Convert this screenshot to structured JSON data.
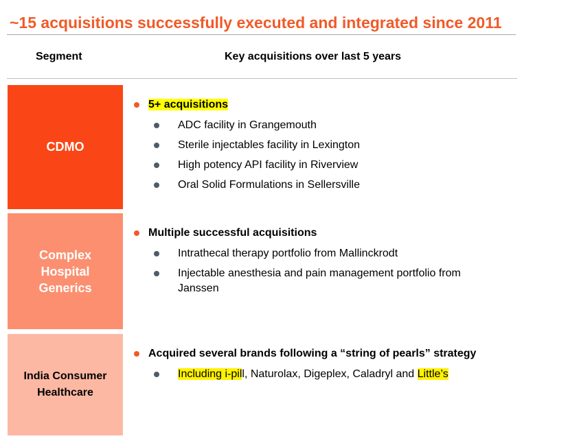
{
  "title": "~15 acquisitions successfully executed and integrated since 2011",
  "headers": {
    "segment": "Segment",
    "acquisitions": "Key acquisitions over last 5 years"
  },
  "colors": {
    "accent": "#f05a28",
    "cdmo": "#fa4616",
    "complex_hospital_generics": "#fc8f70",
    "india_consumer_healthcare": "#fdb8a4",
    "highlight": "#ffff00",
    "sub_bullet": "#4e5b6a"
  },
  "segments": [
    {
      "name_lines": [
        "CDMO"
      ],
      "headline": "5+ acquisitions",
      "items": [
        "ADC facility in Grangemouth",
        "Sterile injectables facility in Lexington",
        "High potency API facility in Riverview",
        "Oral Solid Formulations in Sellersville"
      ]
    },
    {
      "name_lines": [
        "Complex",
        "Hospital",
        "Generics"
      ],
      "headline": "Multiple successful acquisitions",
      "items": [
        "Intrathecal therapy portfolio from Mallinckrodt",
        "Injectable anesthesia and pain management portfolio from Janssen"
      ]
    },
    {
      "name_lines": [
        "India Consumer",
        "Healthcare"
      ],
      "headline": "Acquired several brands following a “string of pearls” strategy",
      "items_parts": {
        "hl1": "Including i-pil",
        "mid": "l, Naturolax, Digeplex, Caladryl and ",
        "hl2": "Little’s"
      }
    }
  ]
}
